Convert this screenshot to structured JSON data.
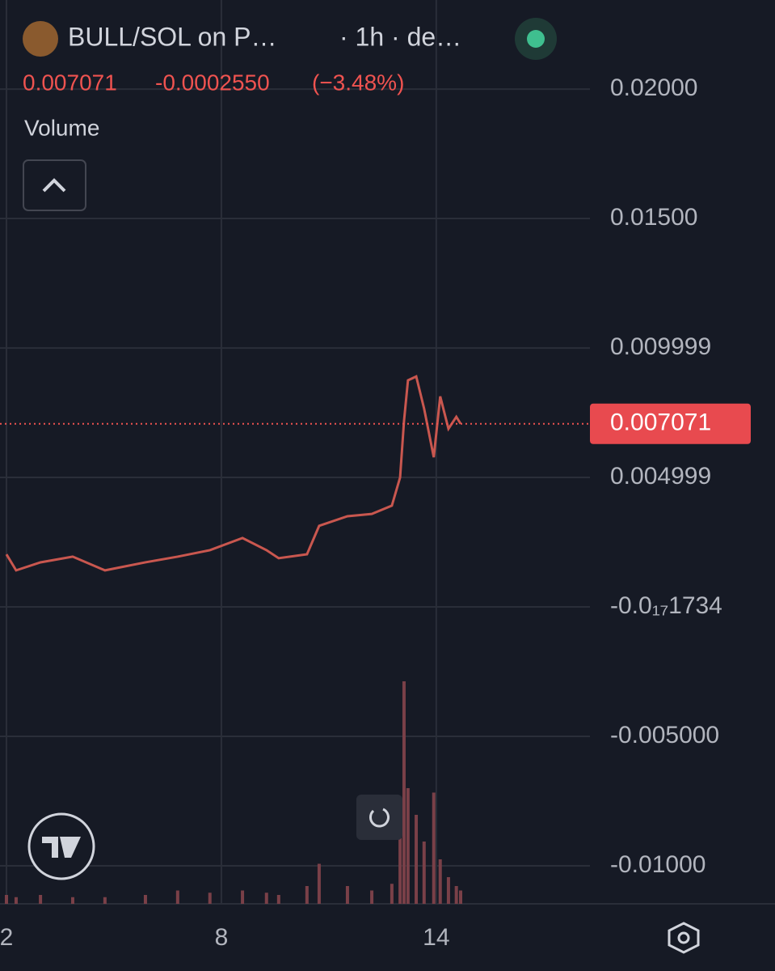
{
  "header": {
    "title": "BULL/SOL on P…",
    "interval": "· 1h · de…",
    "last_price": "0.007071",
    "change": "-0.0002550",
    "change_pct": "(−3.48%)",
    "volume_label": "Volume"
  },
  "chart_data": {
    "type": "line",
    "color": "#c9574f",
    "grid": true,
    "x": [
      2.0,
      2.27,
      2.95,
      3.85,
      4.75,
      5.88,
      6.78,
      7.68,
      8.59,
      9.26,
      9.6,
      10.39,
      10.73,
      11.52,
      12.2,
      12.76,
      12.99,
      13.1,
      13.21,
      13.44,
      13.66,
      13.93,
      14.11,
      14.34,
      14.56,
      14.68
    ],
    "series": [
      {
        "name": "Price",
        "color": "#c9574f",
        "values": [
          0.00203,
          0.00141,
          0.00172,
          0.00194,
          0.00141,
          0.00172,
          0.00194,
          0.00219,
          0.00266,
          0.00219,
          0.00188,
          0.00203,
          0.00313,
          0.0035,
          0.00359,
          0.00391,
          0.005,
          0.00719,
          0.00875,
          0.0089,
          0.00766,
          0.00578,
          0.00813,
          0.00688,
          0.00734,
          0.007071
        ]
      }
    ],
    "volume": {
      "color": "#7a4048",
      "values": [
        4,
        3,
        4,
        3,
        3,
        4,
        6,
        5,
        6,
        5,
        4,
        8,
        18,
        8,
        6,
        9,
        45,
        100,
        52,
        40,
        28,
        50,
        20,
        12,
        8,
        6
      ]
    },
    "last_price": {
      "value": 0.007071,
      "label": "0.007071"
    },
    "xlim": [
      1.82,
      18.29
    ],
    "xticks": [
      2,
      8,
      14
    ],
    "ylim": [
      -0.01147,
      0.02344
    ],
    "yticks": [
      {
        "value": 0.02,
        "label": "0.02000"
      },
      {
        "value": 0.015,
        "label": "0.01500"
      },
      0.009999,
      0.004999,
      {
        "value": -1.734e-18,
        "label": "-0.0₁₇1734"
      },
      {
        "value": -0.005,
        "label": "-0.005000"
      },
      {
        "value": -0.01,
        "label": "-0.01000"
      }
    ]
  }
}
